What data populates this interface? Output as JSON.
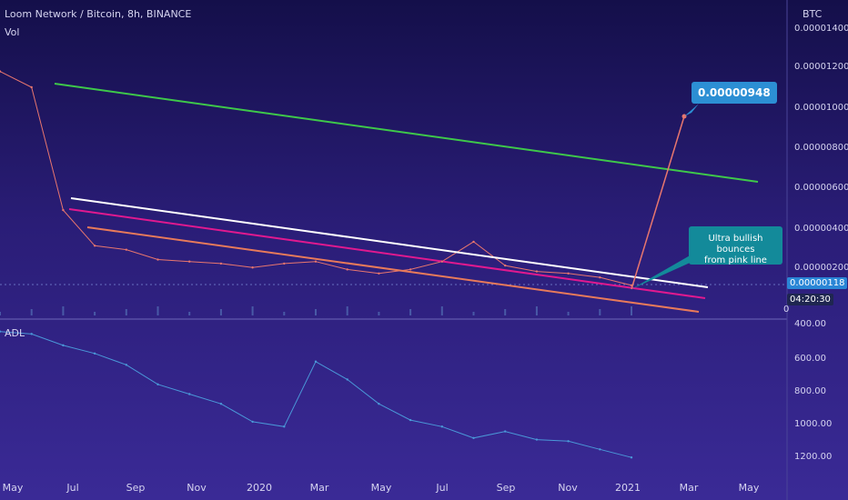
{
  "header": {
    "title": "Loom Network / Bitcoin, 8h, BINANCE",
    "volume_label": "Vol",
    "currency": "BTC"
  },
  "price_axis": {
    "ticks": [
      "0.00001400",
      "0.00001200",
      "0.00001000",
      "0.00000800",
      "0.00000600",
      "0.00000400",
      "0.00000200",
      "0.00000118"
    ],
    "zero_label": "0",
    "timer": "04:20:30"
  },
  "adl": {
    "label": "ADL",
    "ticks": [
      "400.00",
      "600.00",
      "800.00",
      "1000.00",
      "1200.00"
    ]
  },
  "time_axis": [
    "May",
    "Jul",
    "Sep",
    "Nov",
    "2020",
    "Mar",
    "May",
    "Jul",
    "Sep",
    "Nov",
    "2021",
    "Mar",
    "May"
  ],
  "annotations": {
    "target": "0.00000948",
    "note_line1": "Ultra bullish bounces",
    "note_line2": "from pink line"
  },
  "colors": {
    "green_line": "#3ec84a",
    "white_line": "#ffffff",
    "pink_line": "#e0198f",
    "orange_line": "#e87a5a",
    "price_line": "#e8766e",
    "adl_line": "#4a98d8",
    "callout_blue": "#2c8fd4",
    "callout_teal": "#138a9a",
    "accent_tag": "#2a86d6"
  },
  "chart_data": [
    {
      "type": "line",
      "title": "Loom Network / Bitcoin, 8h, BINANCE",
      "unit": "BTC",
      "x": [
        "2019-05",
        "2019-06",
        "2019-07",
        "2019-08",
        "2019-09",
        "2019-10",
        "2019-11",
        "2019-12",
        "2020-01",
        "2020-02",
        "2020-03",
        "2020-04",
        "2020-05",
        "2020-06",
        "2020-07",
        "2020-08",
        "2020-09",
        "2020-10",
        "2020-11",
        "2020-12",
        "2021-01"
      ],
      "values": [
        1.2e-05,
        1.12e-05,
        5e-06,
        3.2e-06,
        3e-06,
        2.5e-06,
        2.4e-06,
        2.3e-06,
        2.1e-06,
        2.3e-06,
        2.4e-06,
        2e-06,
        1.8e-06,
        2e-06,
        2.4e-06,
        3.4e-06,
        2.2e-06,
        1.9e-06,
        1.8e-06,
        1.6e-06,
        1.2e-06
      ],
      "ylim": [
        0,
        1.4e-05
      ],
      "last_price": 1.18e-06,
      "projection_target": 9.48e-06
    },
    {
      "type": "line",
      "title": "ADL",
      "x": [
        "2019-05",
        "2019-06",
        "2019-07",
        "2019-08",
        "2019-09",
        "2019-10",
        "2019-11",
        "2019-12",
        "2020-01",
        "2020-02",
        "2020-03",
        "2020-04",
        "2020-05",
        "2020-06",
        "2020-07",
        "2020-08",
        "2020-09",
        "2020-10",
        "2020-11",
        "2020-12",
        "2021-01"
      ],
      "values": [
        415,
        430,
        500,
        550,
        620,
        740,
        800,
        860,
        970,
        1000,
        600,
        710,
        860,
        960,
        1000,
        1070,
        1030,
        1080,
        1090,
        1140,
        1190
      ],
      "ylim": [
        1260,
        390
      ],
      "y_inverted": true
    }
  ]
}
